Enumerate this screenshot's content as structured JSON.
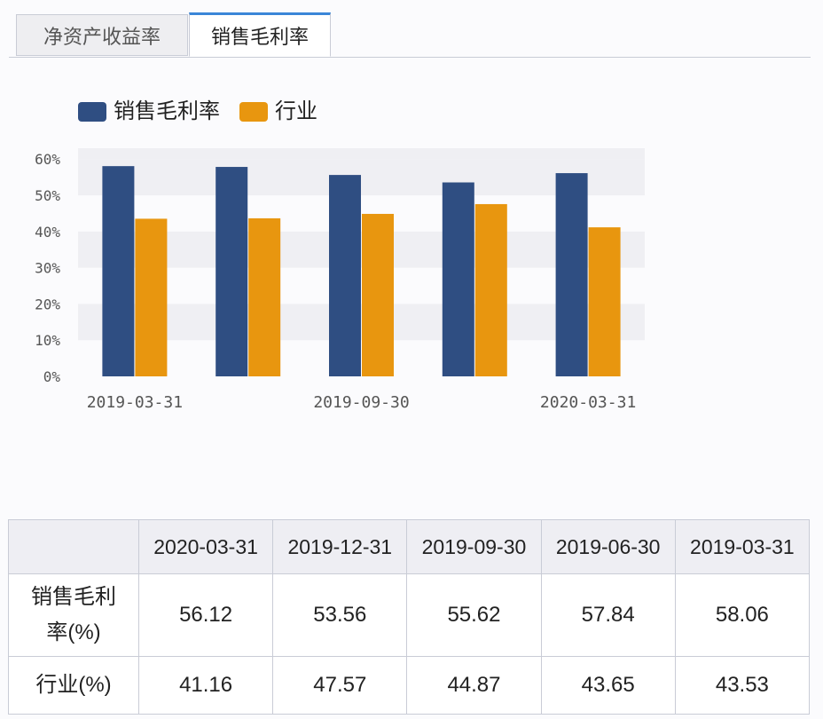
{
  "tabs": [
    {
      "label": "净资产收益率",
      "active": false
    },
    {
      "label": "销售毛利率",
      "active": true
    }
  ],
  "chart_data": {
    "type": "bar",
    "categories": [
      "2019-03-31",
      "2019-06-30",
      "2019-09-30",
      "2019-12-31",
      "2020-03-31"
    ],
    "x_tick_labels": [
      "2019-03-31",
      "2019-09-30",
      "2020-03-31"
    ],
    "series": [
      {
        "name": "销售毛利率",
        "color": "#2f4e82",
        "values": [
          58.06,
          57.84,
          55.62,
          53.56,
          56.12
        ]
      },
      {
        "name": "行业",
        "color": "#e8960f",
        "values": [
          43.53,
          43.65,
          44.87,
          47.57,
          41.16
        ]
      }
    ],
    "yticks": [
      "0%",
      "10%",
      "20%",
      "30%",
      "40%",
      "50%",
      "60%"
    ],
    "ylim": [
      0,
      63
    ],
    "legend": "top-left",
    "grid": "alternating horizontal bands"
  },
  "table": {
    "header": [
      "",
      "2020-03-31",
      "2019-12-31",
      "2019-09-30",
      "2019-06-30",
      "2019-03-31"
    ],
    "rows": [
      {
        "label_line1": "销售毛利",
        "label_line2": "率(%)",
        "values": [
          "56.12",
          "53.56",
          "55.62",
          "57.84",
          "58.06"
        ]
      },
      {
        "label": "行业(%)",
        "values": [
          "41.16",
          "47.57",
          "44.87",
          "43.65",
          "43.53"
        ]
      }
    ]
  }
}
